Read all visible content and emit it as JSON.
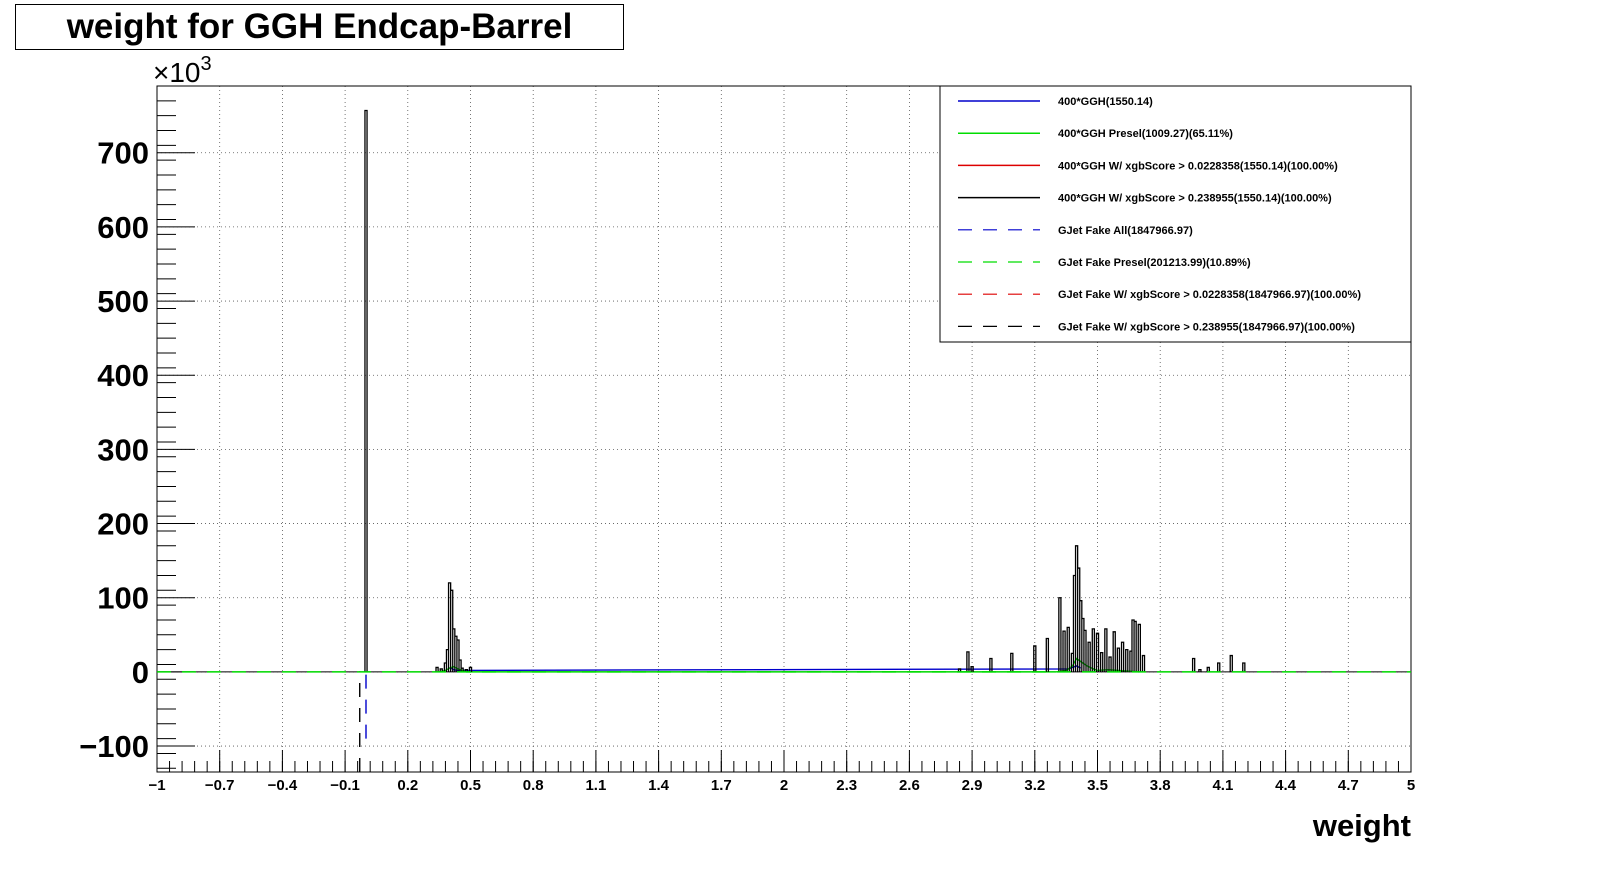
{
  "chart_data": {
    "type": "line",
    "title": "weight for GGH Endcap-Barrel",
    "xlabel": "weight",
    "ylabel": "",
    "y_multiplier_label": "×10",
    "y_multiplier_exp": "3",
    "xlim": [
      -1,
      5
    ],
    "ylim": [
      -135,
      790
    ],
    "grid": true,
    "legend_position": "top-right",
    "x_ticks": [
      -1,
      -0.7,
      -0.4,
      -0.1,
      0.2,
      0.5,
      0.8,
      1.1,
      1.4,
      1.7,
      2,
      2.3,
      2.6,
      2.9,
      3.2,
      3.5,
      3.8,
      4.1,
      4.4,
      4.7,
      5
    ],
    "x_tick_labels": [
      "−1",
      "−0.7",
      "−0.4",
      "−0.1",
      "0.2",
      "0.5",
      "0.8",
      "1.1",
      "1.4",
      "1.7",
      "2",
      "2.3",
      "2.6",
      "2.9",
      "3.2",
      "3.5",
      "3.8",
      "4.1",
      "4.4",
      "4.7",
      "5"
    ],
    "y_ticks": [
      -100,
      0,
      100,
      200,
      300,
      400,
      500,
      600,
      700
    ],
    "y_tick_labels": [
      "−100",
      "0",
      "100",
      "200",
      "300",
      "400",
      "500",
      "600",
      "700"
    ],
    "series": [
      {
        "name": "400*GGH(1550.14)",
        "color": "#0000cc",
        "dash": "solid",
        "x": [
          0.4,
          0.42,
          0.44,
          3.36,
          3.4,
          3.42
        ],
        "y": [
          6,
          3,
          2,
          4,
          8,
          5
        ]
      },
      {
        "name": "400*GGH Presel(1009.27)(65.11%)",
        "color": "#00dd00",
        "dash": "solid",
        "x": [
          0.35,
          0.38,
          0.4,
          0.42,
          0.44,
          0.46,
          0.48,
          3.3,
          3.35,
          3.38,
          3.4,
          3.42,
          3.45,
          3.48,
          3.5,
          3.55,
          3.6,
          3.65,
          3.7
        ],
        "y": [
          0,
          2,
          5,
          7,
          4,
          2,
          0,
          0,
          2,
          8,
          18,
          14,
          8,
          4,
          2,
          3,
          2,
          1,
          0
        ]
      },
      {
        "name": "400*GGH W/ xgbScore > 0.0228358(1550.14)(100.00%)",
        "color": "#dd0000",
        "dash": "solid",
        "x": [],
        "y": []
      },
      {
        "name": "400*GGH W/ xgbScore > 0.238955(1550.14)(100.00%)",
        "color": "#000000",
        "dash": "solid",
        "x": [
          0.0,
          0.34,
          0.36,
          0.38,
          0.39,
          0.4,
          0.41,
          0.42,
          0.43,
          0.44,
          0.45,
          0.46,
          0.48,
          0.5,
          2.84,
          2.88,
          2.9,
          2.99,
          3.09,
          3.2,
          3.26,
          3.32,
          3.34,
          3.36,
          3.38,
          3.39,
          3.4,
          3.41,
          3.42,
          3.43,
          3.44,
          3.46,
          3.48,
          3.5,
          3.52,
          3.54,
          3.56,
          3.58,
          3.6,
          3.62,
          3.64,
          3.66,
          3.67,
          3.68,
          3.7,
          3.72,
          3.96,
          3.99,
          4.03,
          4.08,
          4.14,
          4.2
        ],
        "y": [
          757,
          6,
          4,
          12,
          30,
          120,
          110,
          58,
          48,
          43,
          16,
          5,
          3,
          6,
          4,
          27,
          7,
          18,
          25,
          35,
          45,
          100,
          55,
          60,
          25,
          130,
          170,
          140,
          96,
          72,
          56,
          40,
          58,
          52,
          26,
          58,
          20,
          54,
          32,
          40,
          30,
          28,
          70,
          68,
          64,
          22,
          18,
          3,
          6,
          12,
          22,
          12
        ]
      },
      {
        "name": "GJet Fake All(1847966.97)",
        "color": "#0000cc",
        "dash": "long",
        "x": [
          0.0,
          0.0
        ],
        "y": [
          -90,
          0
        ]
      },
      {
        "name": "GJet Fake Presel(201213.99)(10.89%)",
        "color": "#00dd00",
        "dash": "long",
        "x": [
          -1,
          5
        ],
        "y": [
          0,
          0
        ]
      },
      {
        "name": "GJet Fake W/ xgbScore > 0.0228358(1847966.97)(100.00%)",
        "color": "#dd0000",
        "dash": "long",
        "x": [],
        "y": []
      },
      {
        "name": "GJet Fake W/ xgbScore > 0.238955(1847966.97)(100.00%)",
        "color": "#000000",
        "dash": "long",
        "x": [
          -0.03,
          -0.03
        ],
        "y": [
          -135,
          0
        ]
      }
    ]
  }
}
